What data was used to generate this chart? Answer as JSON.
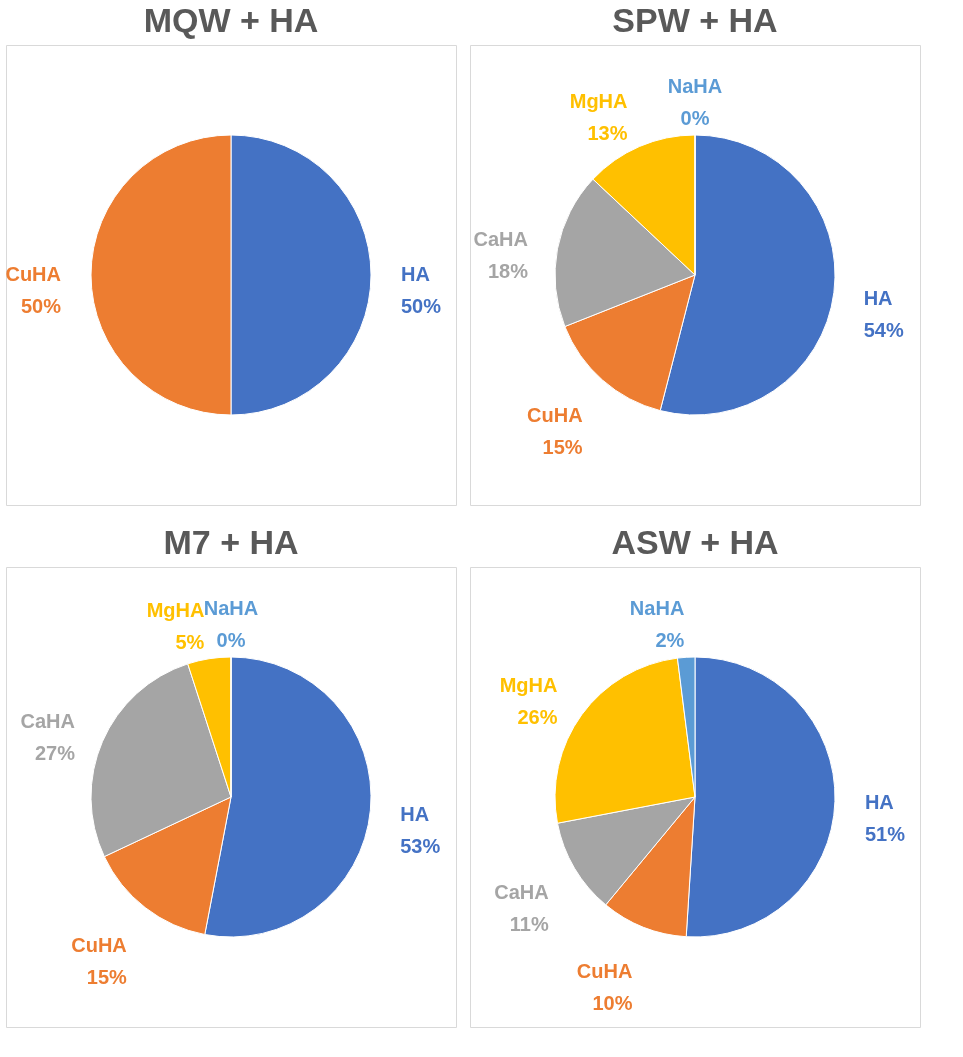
{
  "chart_data": [
    {
      "type": "pie",
      "title": "MQW + HA",
      "categories": [
        "HA",
        "CuHA"
      ],
      "values": [
        50,
        50
      ],
      "colors": [
        "#4472c4",
        "#ed7d31"
      ],
      "value_labels": [
        "50%",
        "50%"
      ]
    },
    {
      "type": "pie",
      "title": "SPW + HA",
      "categories": [
        "HA",
        "CuHA",
        "CaHA",
        "MgHA",
        "NaHA"
      ],
      "values": [
        54,
        15,
        18,
        13,
        0
      ],
      "colors": [
        "#4472c4",
        "#ed7d31",
        "#a5a5a5",
        "#ffc000",
        "#5b9bd5"
      ],
      "value_labels": [
        "54%",
        "15%",
        "18%",
        "13%",
        "0%"
      ]
    },
    {
      "type": "pie",
      "title": "M7 + HA",
      "categories": [
        "HA",
        "CuHA",
        "CaHA",
        "MgHA",
        "NaHA"
      ],
      "values": [
        53,
        15,
        27,
        5,
        0
      ],
      "colors": [
        "#4472c4",
        "#ed7d31",
        "#a5a5a5",
        "#ffc000",
        "#5b9bd5"
      ],
      "value_labels": [
        "53%",
        "15%",
        "27%",
        "5%",
        "0%"
      ]
    },
    {
      "type": "pie",
      "title": "ASW + HA",
      "categories": [
        "HA",
        "CuHA",
        "CaHA",
        "MgHA",
        "NaHA"
      ],
      "values": [
        51,
        10,
        11,
        26,
        2
      ],
      "colors": [
        "#4472c4",
        "#ed7d31",
        "#a5a5a5",
        "#ffc000",
        "#5b9bd5"
      ],
      "value_labels": [
        "51%",
        "10%",
        "11%",
        "26%",
        "2%"
      ]
    }
  ]
}
